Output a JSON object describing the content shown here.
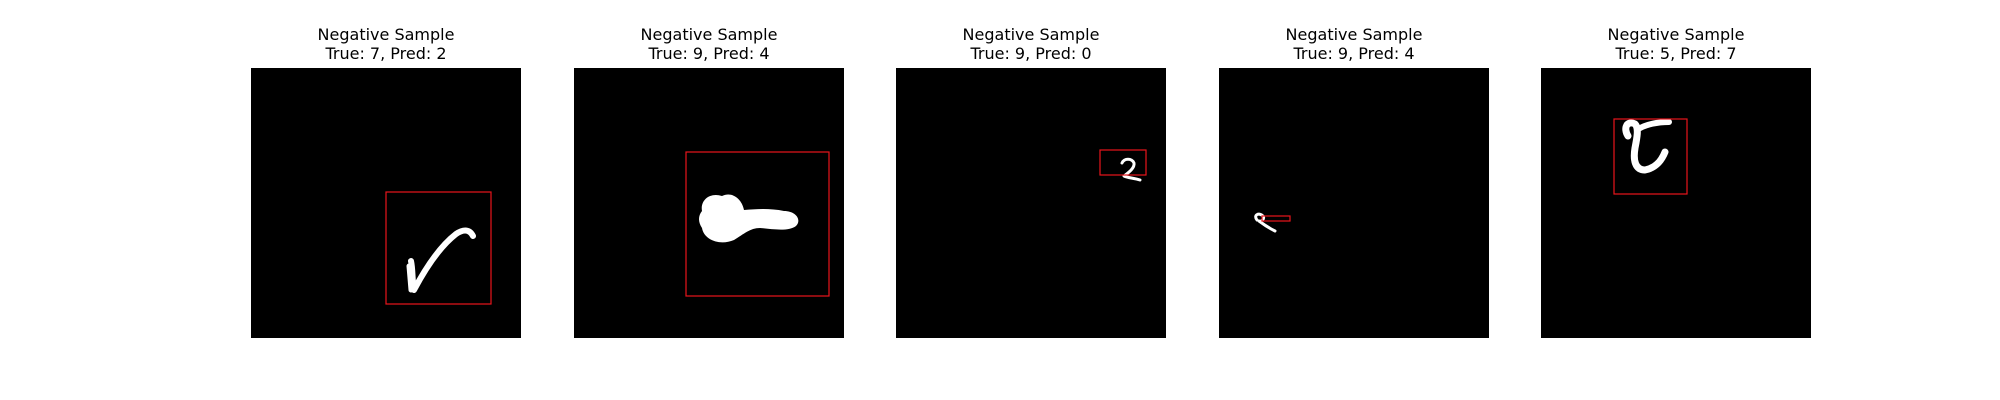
{
  "colors": {
    "background": "#ffffff",
    "image_background": "#000000",
    "stroke": "#ffffff",
    "bbox": "#e8141c"
  },
  "panels": [
    {
      "title": "Negative Sample",
      "subtitle": "True: 7, Pred: 2",
      "digit_glyph": "handwritten-v-shape"
    },
    {
      "title": "Negative Sample",
      "subtitle": "True: 9, Pred: 4",
      "digit_glyph": "blob-shape"
    },
    {
      "title": "Negative Sample",
      "subtitle": "True: 9, Pred: 0",
      "digit_glyph": "small-2-shape"
    },
    {
      "title": "Negative Sample",
      "subtitle": "True: 9, Pred: 4",
      "digit_glyph": "small-hook-shape"
    },
    {
      "title": "Negative Sample",
      "subtitle": "True: 5, Pred: 7",
      "digit_glyph": "r-shape"
    }
  ]
}
